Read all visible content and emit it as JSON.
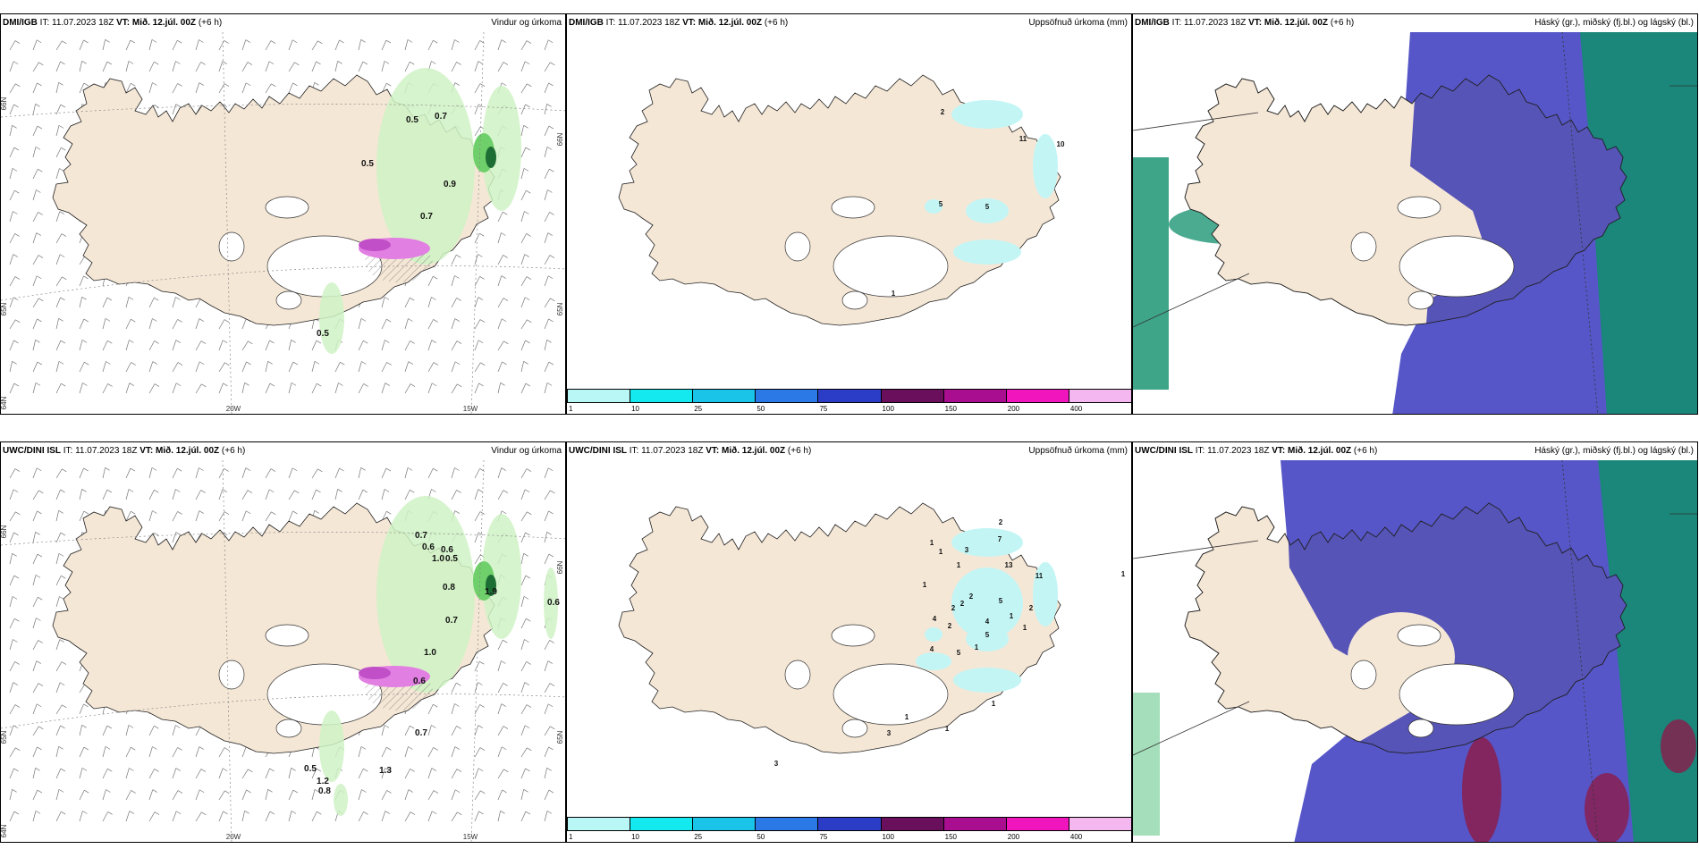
{
  "panels": [
    {
      "id": "p1",
      "model": "DMI/IGB",
      "it": "IT: 11.07.2023 18Z",
      "vt_label": "VT:",
      "vt": "Mið. 12.júl. 00Z",
      "lead": "(+6 h)",
      "title": "Vindur og úrkoma",
      "kind": "wind",
      "labels": [
        {
          "text": "0.5",
          "x": 460,
          "y": 101
        },
        {
          "text": "0.7",
          "x": 492,
          "y": 97
        },
        {
          "text": "0.5",
          "x": 410,
          "y": 150
        },
        {
          "text": "0.9",
          "x": 502,
          "y": 173
        },
        {
          "text": "0.7",
          "x": 476,
          "y": 209
        },
        {
          "text": "0.5",
          "x": 360,
          "y": 340
        }
      ],
      "coords": [
        {
          "text": "66N",
          "side": "left",
          "y": 80
        },
        {
          "text": "65N",
          "side": "left",
          "y": 310
        },
        {
          "text": "64N",
          "side": "left",
          "y": 415
        },
        {
          "text": "66N",
          "side": "right",
          "y": 120
        },
        {
          "text": "65N",
          "side": "right",
          "y": 310
        },
        {
          "text": "20W",
          "side": "bottom",
          "x": 260
        },
        {
          "text": "15W",
          "side": "bottom",
          "x": 525
        }
      ]
    },
    {
      "id": "p2",
      "model": "DMI/IGB",
      "it": "IT: 11.07.2023 18Z",
      "vt_label": "VT:",
      "vt": "Mið. 12.júl. 00Z",
      "lead": "(+6 h)",
      "title": "Uppsöfnuð úrkoma (mm)",
      "kind": "precip",
      "labels": [
        {
          "text": "2",
          "x": 420,
          "y": 92
        },
        {
          "text": "11",
          "x": 510,
          "y": 122
        },
        {
          "text": "10",
          "x": 552,
          "y": 128
        },
        {
          "text": "5",
          "x": 418,
          "y": 195
        },
        {
          "text": "5",
          "x": 470,
          "y": 198
        },
        {
          "text": "1",
          "x": 365,
          "y": 295
        }
      ]
    },
    {
      "id": "p3",
      "model": "DMI/IGB",
      "it": "IT: 11.07.2023 18Z",
      "vt_label": "VT:",
      "vt": "Mið. 12.júl. 00Z",
      "lead": "(+6 h)",
      "title": "Háský (gr.), miðský (fj.bl.) og lágský (bl.)",
      "kind": "cloud",
      "labels": []
    },
    {
      "id": "p4",
      "model": "UWC/DINI ISL",
      "it": "IT: 11.07.2023 18Z",
      "vt_label": "VT:",
      "vt": "Mið. 12.júl. 00Z",
      "lead": "(+6 h)",
      "title": "Vindur og úrkoma",
      "kind": "wind",
      "labels": [
        {
          "text": "0.7",
          "x": 470,
          "y": 87
        },
        {
          "text": "0.6",
          "x": 478,
          "y": 100
        },
        {
          "text": "0.6",
          "x": 499,
          "y": 103
        },
        {
          "text": "1.0",
          "x": 489,
          "y": 113
        },
        {
          "text": "0.5",
          "x": 504,
          "y": 113
        },
        {
          "text": "0.8",
          "x": 501,
          "y": 145
        },
        {
          "text": "1.9",
          "x": 548,
          "y": 150
        },
        {
          "text": "0.6",
          "x": 618,
          "y": 162
        },
        {
          "text": "0.7",
          "x": 504,
          "y": 182
        },
        {
          "text": "1.0",
          "x": 480,
          "y": 218
        },
        {
          "text": "0.6",
          "x": 468,
          "y": 250
        },
        {
          "text": "0.7",
          "x": 470,
          "y": 308
        },
        {
          "text": "0.5",
          "x": 346,
          "y": 348
        },
        {
          "text": "1.3",
          "x": 430,
          "y": 350
        },
        {
          "text": "1.2",
          "x": 360,
          "y": 362
        },
        {
          "text": "0.8",
          "x": 362,
          "y": 373
        }
      ],
      "coords": [
        {
          "text": "66N",
          "side": "left",
          "y": 80
        },
        {
          "text": "65N",
          "side": "left",
          "y": 310
        },
        {
          "text": "64N",
          "side": "left",
          "y": 415
        },
        {
          "text": "66N",
          "side": "right",
          "y": 120
        },
        {
          "text": "65N",
          "side": "right",
          "y": 310
        },
        {
          "text": "20W",
          "side": "bottom",
          "x": 260
        },
        {
          "text": "15W",
          "side": "bottom",
          "x": 525
        }
      ]
    },
    {
      "id": "p5",
      "model": "UWC/DINI ISL",
      "it": "IT: 11.07.2023 18Z",
      "vt_label": "VT:",
      "vt": "Mið. 12.júl. 00Z",
      "lead": "(+6 h)",
      "title": "Uppsöfnuð úrkoma (mm)",
      "kind": "precip",
      "labels": [
        {
          "text": "2",
          "x": 485,
          "y": 72
        },
        {
          "text": "1",
          "x": 408,
          "y": 95
        },
        {
          "text": "7",
          "x": 484,
          "y": 91
        },
        {
          "text": "1",
          "x": 418,
          "y": 105
        },
        {
          "text": "3",
          "x": 447,
          "y": 103
        },
        {
          "text": "1",
          "x": 438,
          "y": 120
        },
        {
          "text": "13",
          "x": 494,
          "y": 120
        },
        {
          "text": "11",
          "x": 528,
          "y": 132
        },
        {
          "text": "1",
          "x": 400,
          "y": 142
        },
        {
          "text": "2",
          "x": 452,
          "y": 155
        },
        {
          "text": "2",
          "x": 442,
          "y": 163
        },
        {
          "text": "2",
          "x": 432,
          "y": 168
        },
        {
          "text": "5",
          "x": 485,
          "y": 160
        },
        {
          "text": "2",
          "x": 519,
          "y": 168
        },
        {
          "text": "4",
          "x": 411,
          "y": 180
        },
        {
          "text": "2",
          "x": 428,
          "y": 188
        },
        {
          "text": "4",
          "x": 470,
          "y": 183
        },
        {
          "text": "1",
          "x": 497,
          "y": 177
        },
        {
          "text": "1",
          "x": 512,
          "y": 190
        },
        {
          "text": "5",
          "x": 470,
          "y": 198
        },
        {
          "text": "1",
          "x": 622,
          "y": 130
        },
        {
          "text": "4",
          "x": 408,
          "y": 214
        },
        {
          "text": "5",
          "x": 438,
          "y": 218
        },
        {
          "text": "1",
          "x": 458,
          "y": 212
        },
        {
          "text": "1",
          "x": 380,
          "y": 290
        },
        {
          "text": "1",
          "x": 477,
          "y": 275
        },
        {
          "text": "3",
          "x": 360,
          "y": 308
        },
        {
          "text": "1",
          "x": 425,
          "y": 303
        },
        {
          "text": "3",
          "x": 234,
          "y": 342
        }
      ]
    },
    {
      "id": "p6",
      "model": "UWC/DINI ISL",
      "it": "IT: 11.07.2023 18Z",
      "vt_label": "VT:",
      "vt": "Mið. 12.júl. 00Z",
      "lead": "(+6 h)",
      "title": "Háský (gr.), miðský (fj.bl.) og lágský (bl.)",
      "kind": "cloud",
      "labels": []
    }
  ],
  "colorbar": {
    "ticks": [
      "1",
      "10",
      "25",
      "50",
      "75",
      "100",
      "150",
      "200",
      "400"
    ],
    "colors": [
      "#b9f7f7",
      "#14e9f0",
      "#1ac4e8",
      "#2b79e6",
      "#2b3cc7",
      "#6a0f5c",
      "#a80e8f",
      "#f015bd",
      "#f5b7ef"
    ]
  },
  "colors": {
    "land": "#f5e7d6",
    "glacier": "#ffffff",
    "light_precip": "#cff2c4",
    "mid_precip": "#6fcf6a",
    "heavy_precip": "#1d6e34",
    "snow": "#e27fe2",
    "precip_cyan": "#c3f5f5",
    "high_cloud": "#0f8f6c",
    "mid_cloud": "#5656c8",
    "low_cloud": "#3a3ab0",
    "conv": "#8b1c4b"
  }
}
